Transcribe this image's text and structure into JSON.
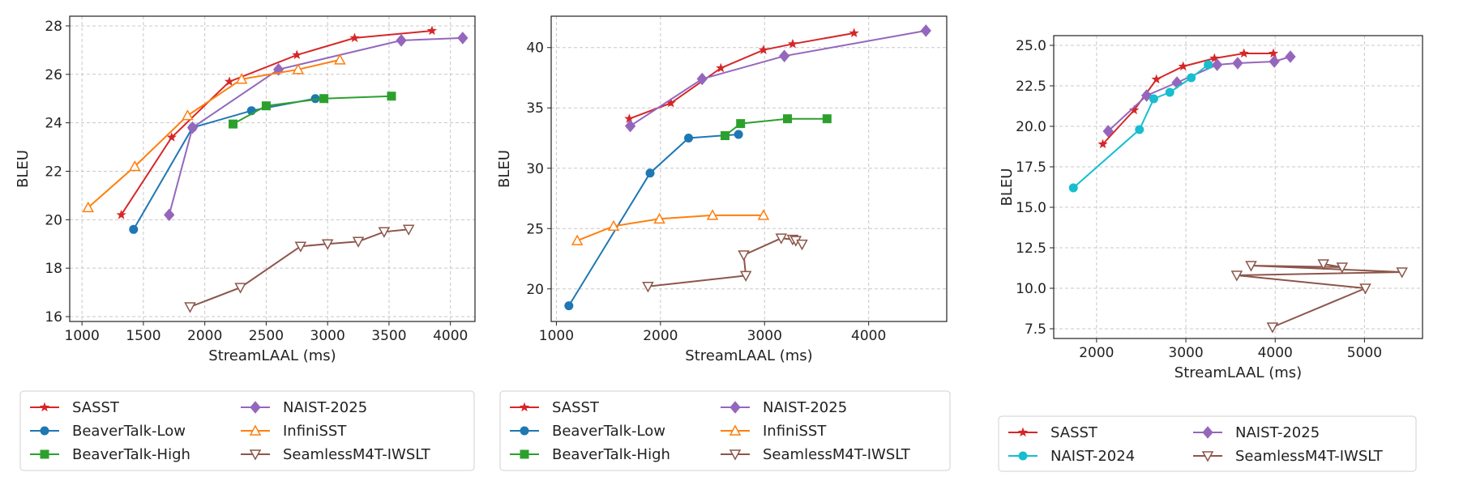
{
  "chart_data": [
    {
      "type": "line",
      "xlabel": "StreamLAAL (ms)",
      "ylabel": "BLEU",
      "xlim": [
        900,
        4200
      ],
      "ylim": [
        15.8,
        28.4
      ],
      "xticks": [
        1000,
        1500,
        2000,
        2500,
        3000,
        3500,
        4000
      ],
      "yticks": [
        16,
        18,
        20,
        22,
        24,
        26,
        28
      ],
      "grid": true,
      "legend_placement": "below",
      "series": [
        {
          "name": "SASST",
          "color": "#d62728",
          "marker": "star",
          "x": [
            1320,
            1730,
            2200,
            2750,
            3220,
            3850
          ],
          "y": [
            20.2,
            23.4,
            25.7,
            26.8,
            27.5,
            27.8
          ]
        },
        {
          "name": "BeaverTalk-Low",
          "color": "#1f77b4",
          "marker": "circle",
          "x": [
            1420,
            1900,
            2380,
            2900
          ],
          "y": [
            19.6,
            23.8,
            24.5,
            25.0
          ]
        },
        {
          "name": "BeaverTalk-High",
          "color": "#2ca02c",
          "marker": "square",
          "x": [
            2230,
            2500,
            2970,
            3520
          ],
          "y": [
            23.95,
            24.7,
            25.0,
            25.1
          ]
        },
        {
          "name": "NAIST-2025",
          "color": "#9467bd",
          "marker": "diamond",
          "x": [
            1710,
            1900,
            2600,
            3600,
            4100
          ],
          "y": [
            20.2,
            23.8,
            26.2,
            27.4,
            27.5
          ]
        },
        {
          "name": "InfiniSST",
          "color": "#ff7f0e",
          "marker": "triangle-up",
          "x": [
            1050,
            1430,
            1860,
            2300,
            2760,
            3100
          ],
          "y": [
            20.5,
            22.2,
            24.3,
            25.8,
            26.2,
            26.6
          ]
        },
        {
          "name": "SeamlessM4T-IWSLT",
          "color": "#8c564b",
          "marker": "triangle-down",
          "x": [
            1880,
            2290,
            2780,
            3000,
            3250,
            3460,
            3660
          ],
          "y": [
            16.4,
            17.2,
            18.9,
            19.0,
            19.1,
            19.5,
            19.6
          ]
        }
      ],
      "legend": {
        "entries": [
          {
            "name": "SASST",
            "color": "#d62728",
            "marker": "star"
          },
          {
            "name": "NAIST-2025",
            "color": "#9467bd",
            "marker": "diamond"
          },
          {
            "name": "BeaverTalk-Low",
            "color": "#1f77b4",
            "marker": "circle"
          },
          {
            "name": "InfiniSST",
            "color": "#ff7f0e",
            "marker": "triangle-up"
          },
          {
            "name": "BeaverTalk-High",
            "color": "#2ca02c",
            "marker": "square"
          },
          {
            "name": "SeamlessM4T-IWSLT",
            "color": "#8c564b",
            "marker": "triangle-down"
          }
        ]
      }
    },
    {
      "type": "line",
      "xlabel": "StreamLAAL (ms)",
      "ylabel": "BLEU",
      "xlim": [
        950,
        4750
      ],
      "ylim": [
        17.3,
        42.6
      ],
      "xticks": [
        1000,
        2000,
        3000,
        4000
      ],
      "yticks": [
        20,
        25,
        30,
        35,
        40
      ],
      "grid": true,
      "legend_placement": "below",
      "series": [
        {
          "name": "SASST",
          "color": "#d62728",
          "marker": "star",
          "x": [
            1700,
            2100,
            2580,
            2990,
            3270,
            3860
          ],
          "y": [
            34.1,
            35.4,
            38.3,
            39.8,
            40.3,
            41.2
          ]
        },
        {
          "name": "BeaverTalk-Low",
          "color": "#1f77b4",
          "marker": "circle",
          "x": [
            1120,
            1900,
            2270,
            2750
          ],
          "y": [
            18.6,
            29.6,
            32.5,
            32.8
          ]
        },
        {
          "name": "BeaverTalk-High",
          "color": "#2ca02c",
          "marker": "square",
          "x": [
            2620,
            2770,
            3220,
            3600
          ],
          "y": [
            32.7,
            33.7,
            34.1,
            34.1
          ]
        },
        {
          "name": "NAIST-2025",
          "color": "#9467bd",
          "marker": "diamond",
          "x": [
            1710,
            2400,
            3190,
            4550
          ],
          "y": [
            33.5,
            37.4,
            39.3,
            41.4
          ]
        },
        {
          "name": "InfiniSST",
          "color": "#ff7f0e",
          "marker": "triangle-up",
          "x": [
            1200,
            1550,
            1990,
            2500,
            2990
          ],
          "y": [
            24.0,
            25.2,
            25.8,
            26.1,
            26.1
          ]
        },
        {
          "name": "SeamlessM4T-IWSLT",
          "color": "#8c564b",
          "marker": "triangle-down",
          "x": [
            1880,
            2820,
            2800,
            3160,
            3270,
            3300,
            3360
          ],
          "y": [
            20.2,
            21.1,
            22.8,
            24.2,
            24.1,
            24.0,
            23.7
          ]
        }
      ],
      "legend": {
        "entries": [
          {
            "name": "SASST",
            "color": "#d62728",
            "marker": "star"
          },
          {
            "name": "NAIST-2025",
            "color": "#9467bd",
            "marker": "diamond"
          },
          {
            "name": "BeaverTalk-Low",
            "color": "#1f77b4",
            "marker": "circle"
          },
          {
            "name": "InfiniSST",
            "color": "#ff7f0e",
            "marker": "triangle-up"
          },
          {
            "name": "BeaverTalk-High",
            "color": "#2ca02c",
            "marker": "square"
          },
          {
            "name": "SeamlessM4T-IWSLT",
            "color": "#8c564b",
            "marker": "triangle-down"
          }
        ]
      }
    },
    {
      "type": "line",
      "xlabel": "StreamLAAL (ms)",
      "ylabel": "BLEU",
      "xlim": [
        1520,
        5650
      ],
      "ylim": [
        6.9,
        25.6
      ],
      "xticks": [
        2000,
        3000,
        4000,
        5000
      ],
      "yticks": [
        7.5,
        10.0,
        12.5,
        15.0,
        17.5,
        20.0,
        22.5,
        25.0
      ],
      "ytick_labels": [
        "7.5",
        "10.0",
        "12.5",
        "15.0",
        "17.5",
        "20.0",
        "22.5",
        "25.0"
      ],
      "grid": true,
      "legend_placement": "below",
      "series": [
        {
          "name": "SASST",
          "color": "#d62728",
          "marker": "star",
          "x": [
            2070,
            2420,
            2670,
            2970,
            3320,
            3650,
            3980
          ],
          "y": [
            18.9,
            21.0,
            22.9,
            23.7,
            24.2,
            24.5,
            24.5
          ]
        },
        {
          "name": "NAIST-2025",
          "color": "#9467bd",
          "marker": "diamond",
          "x": [
            2130,
            2560,
            2900,
            3350,
            3580,
            3990,
            4170
          ],
          "y": [
            19.7,
            21.9,
            22.7,
            23.8,
            23.9,
            24.0,
            24.3
          ]
        },
        {
          "name": "NAIST-2024",
          "color": "#17becf",
          "marker": "circle",
          "x": [
            1740,
            2480,
            2640,
            2820,
            3060,
            3250
          ],
          "y": [
            16.2,
            19.8,
            21.7,
            22.1,
            23.0,
            23.8
          ]
        },
        {
          "name": "SeamlessM4T-IWSLT",
          "color": "#8c564b",
          "marker": "triangle-down",
          "x": [
            3970,
            5010,
            3570,
            5420,
            3730,
            4750,
            4540
          ],
          "y": [
            7.6,
            10.0,
            10.8,
            11.0,
            11.4,
            11.3,
            11.5
          ]
        }
      ],
      "legend": {
        "entries": [
          {
            "name": "SASST",
            "color": "#d62728",
            "marker": "star"
          },
          {
            "name": "NAIST-2025",
            "color": "#9467bd",
            "marker": "diamond"
          },
          {
            "name": "NAIST-2024",
            "color": "#17becf",
            "marker": "circle"
          },
          {
            "name": "SeamlessM4T-IWSLT",
            "color": "#8c564b",
            "marker": "triangle-down"
          }
        ]
      }
    }
  ]
}
